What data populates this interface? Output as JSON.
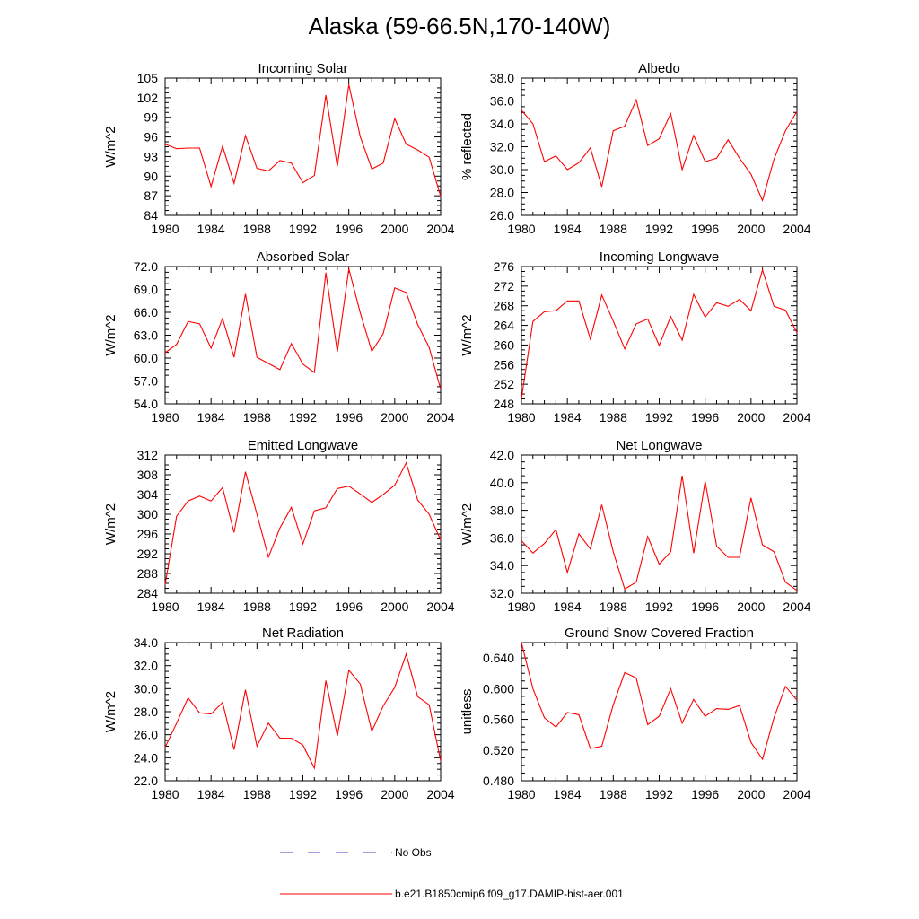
{
  "figure": {
    "title": "Alaska (59-66.5N,170-140W)"
  },
  "legend": {
    "items": [
      {
        "label": "No Obs",
        "color": "#4040c0",
        "dash": true
      },
      {
        "label": "b.e21.B1850cmip6.f09_g17.DAMIP-hist-aer.001",
        "color": "#ff0000",
        "dash": false
      }
    ]
  },
  "chart_data": [
    {
      "type": "line",
      "title": "Incoming Solar",
      "ylabel": "W/m^2",
      "x": [
        1980,
        1981,
        1982,
        1983,
        1984,
        1985,
        1986,
        1987,
        1988,
        1989,
        1990,
        1991,
        1992,
        1993,
        1994,
        1995,
        1996,
        1997,
        1998,
        1999,
        2000,
        2001,
        2002,
        2003,
        2004
      ],
      "xticks": [
        "1980",
        "1984",
        "1988",
        "1992",
        "1996",
        "2000",
        "2004"
      ],
      "ylim": [
        84,
        105
      ],
      "yticks": [
        "84",
        "87",
        "90",
        "93",
        "96",
        "99",
        "102",
        "105"
      ],
      "series": [
        {
          "color": "#ff0000",
          "values": [
            94.9,
            94.2,
            94.3,
            94.3,
            88.4,
            94.6,
            88.9,
            96.2,
            91.2,
            90.8,
            92.4,
            92.0,
            89.0,
            90.1,
            102.4,
            91.5,
            104.0,
            96.0,
            91.1,
            92.0,
            98.8,
            94.9,
            94.0,
            92.9,
            86.9
          ]
        }
      ]
    },
    {
      "type": "line",
      "title": "Albedo",
      "ylabel": "% reflected",
      "x": [
        1980,
        1981,
        1982,
        1983,
        1984,
        1985,
        1986,
        1987,
        1988,
        1989,
        1990,
        1991,
        1992,
        1993,
        1994,
        1995,
        1996,
        1997,
        1998,
        1999,
        2000,
        2001,
        2002,
        2003,
        2004
      ],
      "xticks": [
        "1980",
        "1984",
        "1988",
        "1992",
        "1996",
        "2000",
        "2004"
      ],
      "ylim": [
        26.0,
        38.0
      ],
      "yticks": [
        "26.0",
        "28.0",
        "30.0",
        "32.0",
        "34.0",
        "36.0",
        "38.0"
      ],
      "series": [
        {
          "color": "#ff0000",
          "values": [
            35.2,
            34.0,
            30.7,
            31.2,
            30.0,
            30.6,
            31.9,
            28.5,
            33.4,
            33.8,
            36.1,
            32.1,
            32.7,
            34.9,
            30.0,
            33.0,
            30.7,
            31.0,
            32.6,
            31.0,
            29.6,
            27.3,
            30.9,
            33.4,
            35.1
          ]
        }
      ]
    },
    {
      "type": "line",
      "title": "Absorbed Solar",
      "ylabel": "W/m^2",
      "x": [
        1980,
        1981,
        1982,
        1983,
        1984,
        1985,
        1986,
        1987,
        1988,
        1989,
        1990,
        1991,
        1992,
        1993,
        1994,
        1995,
        1996,
        1997,
        1998,
        1999,
        2000,
        2001,
        2002,
        2003,
        2004
      ],
      "xticks": [
        "1980",
        "1984",
        "1988",
        "1992",
        "1996",
        "2000",
        "2004"
      ],
      "ylim": [
        54.0,
        72.0
      ],
      "yticks": [
        "54.0",
        "57.0",
        "60.0",
        "63.0",
        "66.0",
        "69.0",
        "72.0"
      ],
      "series": [
        {
          "color": "#ff0000",
          "values": [
            60.7,
            61.8,
            64.8,
            64.5,
            61.3,
            65.2,
            60.1,
            68.4,
            60.1,
            59.3,
            58.5,
            61.9,
            59.2,
            58.1,
            71.2,
            60.8,
            71.7,
            65.9,
            60.9,
            63.2,
            69.2,
            68.6,
            64.4,
            61.4,
            55.9
          ]
        }
      ]
    },
    {
      "type": "line",
      "title": "Incoming Longwave",
      "ylabel": "W/m^2",
      "x": [
        1980,
        1981,
        1982,
        1983,
        1984,
        1985,
        1986,
        1987,
        1988,
        1989,
        1990,
        1991,
        1992,
        1993,
        1994,
        1995,
        1996,
        1997,
        1998,
        1999,
        2000,
        2001,
        2002,
        2003,
        2004
      ],
      "xticks": [
        "1980",
        "1984",
        "1988",
        "1992",
        "1996",
        "2000",
        "2004"
      ],
      "ylim": [
        248,
        276
      ],
      "yticks": [
        "248",
        "252",
        "256",
        "260",
        "264",
        "268",
        "272",
        "276"
      ],
      "series": [
        {
          "color": "#ff0000",
          "values": [
            249.0,
            264.8,
            266.8,
            267.0,
            269.0,
            269.0,
            261.2,
            270.2,
            264.9,
            259.2,
            264.3,
            265.3,
            259.9,
            265.8,
            261.0,
            270.3,
            265.7,
            268.6,
            267.9,
            269.3,
            267.0,
            275.3,
            267.9,
            267.1,
            262.5
          ]
        }
      ]
    },
    {
      "type": "line",
      "title": "Emitted Longwave",
      "ylabel": "W/m^2",
      "x": [
        1980,
        1981,
        1982,
        1983,
        1984,
        1985,
        1986,
        1987,
        1988,
        1989,
        1990,
        1991,
        1992,
        1993,
        1994,
        1995,
        1996,
        1997,
        1998,
        1999,
        2000,
        2001,
        2002,
        2003,
        2004
      ],
      "xticks": [
        "1980",
        "1984",
        "1988",
        "1992",
        "1996",
        "2000",
        "2004"
      ],
      "ylim": [
        284,
        312
      ],
      "yticks": [
        "284",
        "288",
        "292",
        "296",
        "300",
        "304",
        "308",
        "312"
      ],
      "series": [
        {
          "color": "#ff0000",
          "values": [
            285.7,
            299.6,
            302.7,
            303.7,
            302.7,
            305.4,
            296.3,
            308.6,
            300.0,
            291.3,
            297.2,
            301.4,
            294.0,
            300.7,
            301.3,
            305.2,
            305.7,
            304.1,
            302.4,
            304.0,
            305.9,
            310.4,
            302.9,
            300.0,
            294.8
          ]
        }
      ]
    },
    {
      "type": "line",
      "title": "Net Longwave",
      "ylabel": "W/m^2",
      "x": [
        1980,
        1981,
        1982,
        1983,
        1984,
        1985,
        1986,
        1987,
        1988,
        1989,
        1990,
        1991,
        1992,
        1993,
        1994,
        1995,
        1996,
        1997,
        1998,
        1999,
        2000,
        2001,
        2002,
        2003,
        2004
      ],
      "xticks": [
        "1980",
        "1984",
        "1988",
        "1992",
        "1996",
        "2000",
        "2004"
      ],
      "ylim": [
        32.0,
        42.0
      ],
      "yticks": [
        "32.0",
        "34.0",
        "36.0",
        "38.0",
        "40.0",
        "42.0"
      ],
      "series": [
        {
          "color": "#ff0000",
          "values": [
            35.8,
            34.9,
            35.6,
            36.6,
            33.5,
            36.3,
            35.2,
            38.4,
            35.0,
            32.3,
            32.8,
            36.1,
            34.1,
            35.0,
            40.5,
            34.9,
            40.1,
            35.4,
            34.6,
            34.6,
            38.9,
            35.5,
            35.0,
            32.8,
            32.2
          ]
        }
      ]
    },
    {
      "type": "line",
      "title": "Net Radiation",
      "ylabel": "W/m^2",
      "x": [
        1980,
        1981,
        1982,
        1983,
        1984,
        1985,
        1986,
        1987,
        1988,
        1989,
        1990,
        1991,
        1992,
        1993,
        1994,
        1995,
        1996,
        1997,
        1998,
        1999,
        2000,
        2001,
        2002,
        2003,
        2004
      ],
      "xticks": [
        "1980",
        "1984",
        "1988",
        "1992",
        "1996",
        "2000",
        "2004"
      ],
      "ylim": [
        22.0,
        34.0
      ],
      "yticks": [
        "22.0",
        "24.0",
        "26.0",
        "28.0",
        "30.0",
        "32.0",
        "34.0"
      ],
      "series": [
        {
          "color": "#ff0000",
          "values": [
            24.9,
            27.0,
            29.2,
            27.9,
            27.8,
            28.8,
            24.7,
            29.9,
            25.0,
            27.0,
            25.7,
            25.7,
            25.1,
            23.1,
            30.7,
            25.9,
            31.6,
            30.4,
            26.3,
            28.5,
            30.1,
            33.0,
            29.3,
            28.6,
            23.7
          ]
        }
      ]
    },
    {
      "type": "line",
      "title": "Ground Snow Covered Fraction",
      "ylabel": "unitless",
      "x": [
        1980,
        1981,
        1982,
        1983,
        1984,
        1985,
        1986,
        1987,
        1988,
        1989,
        1990,
        1991,
        1992,
        1993,
        1994,
        1995,
        1996,
        1997,
        1998,
        1999,
        2000,
        2001,
        2002,
        2003,
        2004
      ],
      "xticks": [
        "1980",
        "1984",
        "1988",
        "1992",
        "1996",
        "2000",
        "2004"
      ],
      "ylim": [
        0.48,
        0.66
      ],
      "yticks": [
        "0.480",
        "0.520",
        "0.560",
        "0.600",
        "0.640"
      ],
      "series": [
        {
          "color": "#ff0000",
          "values": [
            0.66,
            0.6,
            0.562,
            0.55,
            0.569,
            0.566,
            0.522,
            0.525,
            0.579,
            0.621,
            0.614,
            0.553,
            0.564,
            0.6,
            0.555,
            0.586,
            0.564,
            0.574,
            0.573,
            0.578,
            0.53,
            0.508,
            0.562,
            0.603,
            0.585
          ]
        }
      ]
    }
  ]
}
